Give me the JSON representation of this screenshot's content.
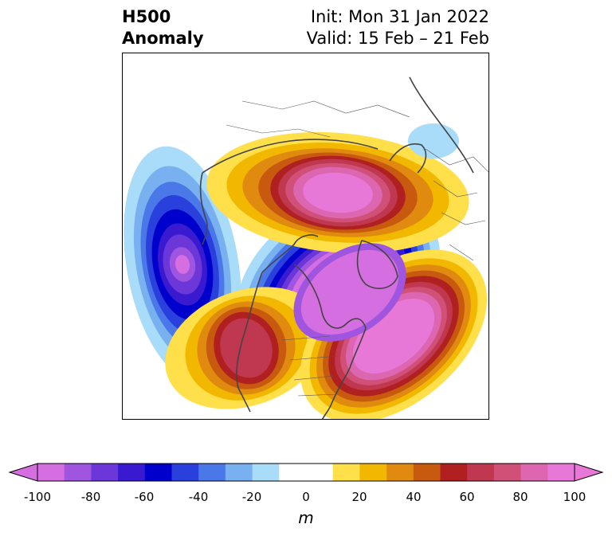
{
  "header": {
    "title_line1": "H500",
    "title_line2": "Anomaly",
    "init_text": "Init: Mon 31 Jan 2022",
    "valid_text": "Valid: 15 Feb – 21 Feb"
  },
  "colorbar": {
    "unit": "m",
    "ticks": [
      "-100",
      "-80",
      "-60",
      "-40",
      "-20",
      "0",
      "20",
      "40",
      "60",
      "80",
      "100"
    ],
    "levels": [
      -100,
      -90,
      -80,
      -70,
      -60,
      -50,
      -40,
      -30,
      -20,
      -10,
      10,
      20,
      30,
      40,
      50,
      60,
      70,
      80,
      90,
      100
    ],
    "colors": [
      "#d56ee0",
      "#9f55e0",
      "#6b37d8",
      "#3a1ad0",
      "#0000cc",
      "#2a40dc",
      "#4a78e8",
      "#78b0f0",
      "#a8dcf8",
      "#ffffff",
      "#ffffff",
      "#ffe04a",
      "#f2b800",
      "#e08a10",
      "#c85a10",
      "#b02020",
      "#c03850",
      "#d05078",
      "#dc66b0",
      "#e878d8"
    ]
  },
  "map": {
    "features": [
      {
        "name": "trough-north-pacific",
        "sign": "negative",
        "peak": -100
      },
      {
        "name": "trough-canada-greenland",
        "sign": "negative",
        "peak": -100
      },
      {
        "name": "ridge-western-north-america",
        "sign": "positive",
        "peak": 80
      },
      {
        "name": "ridge-north-atlantic",
        "sign": "positive",
        "peak": 100
      },
      {
        "name": "ridge-northern-russia",
        "sign": "positive",
        "peak": 100
      }
    ]
  }
}
